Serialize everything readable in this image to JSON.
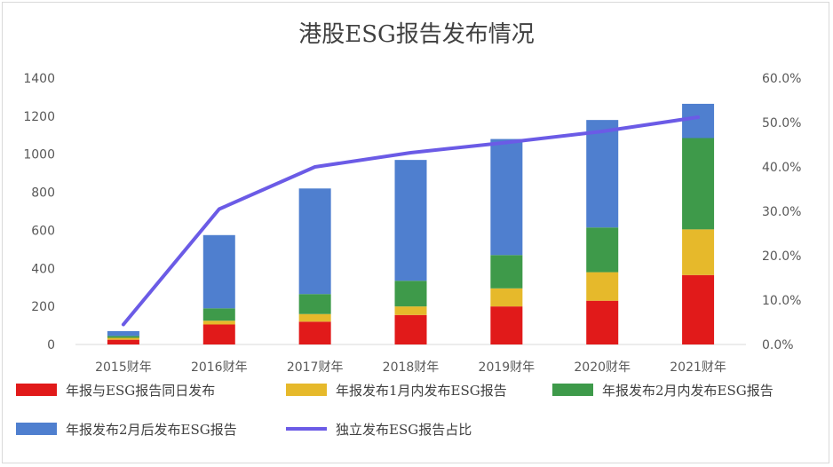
{
  "chart_data": {
    "type": "bar",
    "title": "港股ESG报告发布情况",
    "categories": [
      "2015财年",
      "2016财年",
      "2017财年",
      "2018财年",
      "2019财年",
      "2020财年",
      "2021财年"
    ],
    "series": [
      {
        "name": "年报与ESG报告同日发布",
        "color": "#e11a1a",
        "values": [
          25,
          105,
          120,
          155,
          200,
          230,
          365
        ]
      },
      {
        "name": "年报发布1月内发布ESG报告",
        "color": "#e6b92b",
        "values": [
          10,
          20,
          40,
          45,
          95,
          150,
          240
        ]
      },
      {
        "name": "年报发布2月内发布ESG报告",
        "color": "#3e9a4a",
        "values": [
          10,
          65,
          105,
          135,
          175,
          235,
          480
        ]
      },
      {
        "name": "年报发布2月后发布ESG报告",
        "color": "#4f7fcf",
        "values": [
          25,
          385,
          555,
          635,
          610,
          565,
          180
        ]
      }
    ],
    "line_series": {
      "name": "独立发布ESG报告占比",
      "color": "#6b5be6",
      "values": [
        4.5,
        30.5,
        40.0,
        43.2,
        45.5,
        48.0,
        51.2
      ],
      "axis": "right"
    },
    "ylim": [
      0,
      1400
    ],
    "yticks": [
      "0",
      "200",
      "400",
      "600",
      "800",
      "1000",
      "1200",
      "1400"
    ],
    "y2lim": [
      0,
      60
    ],
    "y2ticks": [
      "0.0%",
      "10.0%",
      "20.0%",
      "30.0%",
      "40.0%",
      "50.0%",
      "60.0%"
    ],
    "legend_position": "bottom",
    "grid": false
  }
}
